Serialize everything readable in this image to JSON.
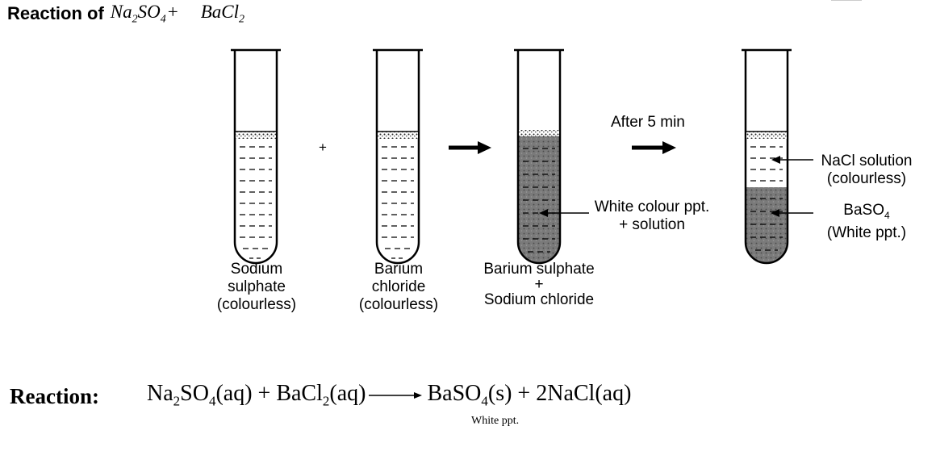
{
  "title": {
    "prefix": "Reaction of",
    "reactant1": "Na",
    "reactant1_sub1": "2",
    "reactant1_mid": "SO",
    "reactant1_sub2": "4",
    "plus": "+",
    "reactant2": "BaCl",
    "reactant2_sub": "2"
  },
  "diagram": {
    "plus_sign": "+",
    "after_label": "After 5 min",
    "tubes": [
      {
        "lines": [
          "Sodium",
          "sulphate",
          "(colourless)"
        ]
      },
      {
        "lines": [
          "Barium",
          "chloride",
          "(colourless)"
        ]
      },
      {
        "lines": [
          "Barium sulphate",
          "+",
          "Sodium chloride"
        ]
      },
      {
        "lines": []
      }
    ],
    "tube3_annotation": [
      "White colour ppt.",
      "+ solution"
    ],
    "tube4_annotations": {
      "solution": [
        "NaCl solution",
        "(colourless)"
      ],
      "precipitate": [
        "BaSO",
        "4",
        "(White ppt.)"
      ]
    }
  },
  "reaction": {
    "label": "Reaction:",
    "lhs1": "Na",
    "lhs1_sub1": "2",
    "lhs1_mid": "SO",
    "lhs1_sub2": "4",
    "lhs1_state": "(aq)",
    "plus1": " + ",
    "lhs2": "BaCl",
    "lhs2_sub": "2",
    "lhs2_state": "(aq)",
    "rhs1": "BaSO",
    "rhs1_sub": "4",
    "rhs1_state": "(s)",
    "plus2": " + ",
    "rhs2": "2NaCl",
    "rhs2_state": "(aq)",
    "precipitate_note": "White ppt."
  }
}
